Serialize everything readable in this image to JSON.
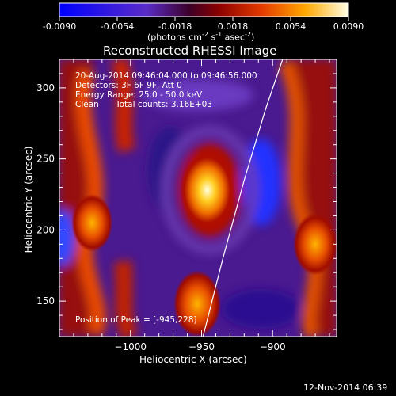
{
  "chart_data": {
    "type": "heatmap",
    "title": "Reconstructed RHESSI Image",
    "xlabel": "Heliocentric X (arcsec)",
    "ylabel": "Heliocentric Y (arcsec)",
    "xlim": [
      -1050,
      -855
    ],
    "ylim": [
      125,
      320
    ],
    "xticks": [
      -1000,
      -950,
      -900
    ],
    "yticks": [
      150,
      200,
      250,
      300
    ],
    "colorbar": {
      "min": -0.009,
      "max": 0.009,
      "ticks": [
        "-0.0090",
        "-0.0054",
        "-0.0018",
        "0.0018",
        "0.0054",
        "0.0090"
      ],
      "label_unit": "(photons cm",
      "label_exp1": "-2",
      "label_mid1": " s",
      "label_exp2": "-1",
      "label_mid2": " asec",
      "label_exp3": "-2",
      "label_end": ")"
    },
    "annotations": {
      "time_range": "20-Aug-2014 09:46:04.000 to 09:46:56.000",
      "detectors": "Detectors: 3F 6F 9F, Att 0",
      "energy": "Energy Range: 25.0 - 50.0 keV",
      "method": "Clean",
      "counts": "Total counts: 3.16E+03",
      "peak": "Position of Peak = [-945,228]"
    },
    "sources": [
      {
        "x": -946,
        "y": 228,
        "value": 0.009
      },
      {
        "x": -953,
        "y": 148,
        "value": 0.007
      },
      {
        "x": -870,
        "y": 190,
        "value": 0.006
      },
      {
        "x": -1027,
        "y": 205,
        "value": 0.005
      }
    ],
    "limb": [
      [
        -949,
        125
      ],
      [
        -935,
        180
      ],
      [
        -920,
        235
      ],
      [
        -905,
        285
      ],
      [
        -893,
        320
      ]
    ],
    "grid": false
  },
  "footer": {
    "timestamp": "12-Nov-2014 06:39"
  }
}
